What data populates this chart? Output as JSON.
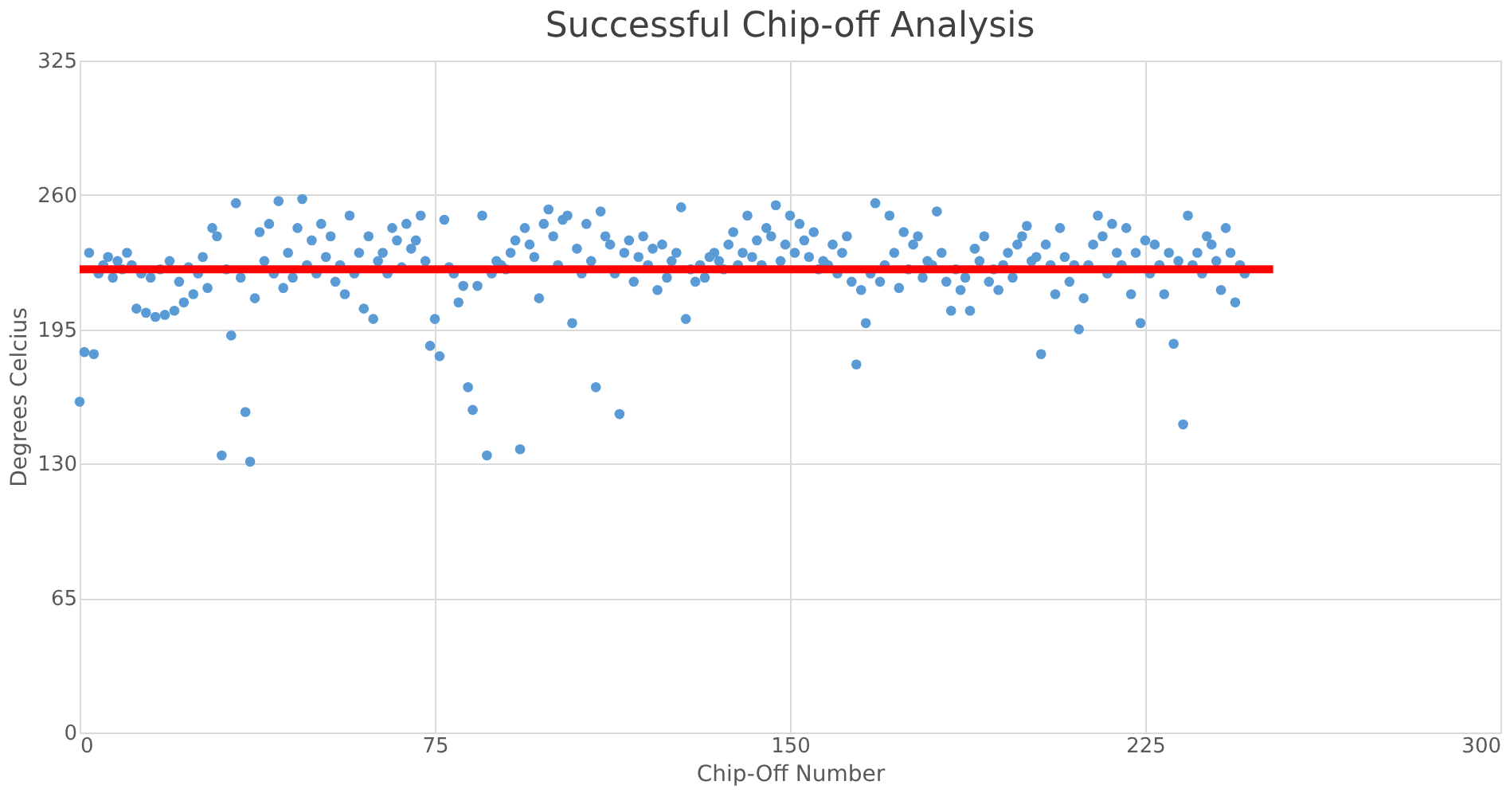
{
  "chart_data": {
    "type": "scatter",
    "title": "Successful Chip-off Analysis",
    "xlabel": "Chip-Off Number",
    "ylabel": "Degrees Celcius",
    "xlim": [
      0,
      300
    ],
    "xticks": [
      0,
      75,
      150,
      225,
      300
    ],
    "ylim": [
      0,
      325
    ],
    "yticks": [
      0,
      65,
      130,
      195,
      260,
      325
    ],
    "grid": true,
    "legend": false,
    "marker": "circle",
    "series": [
      {
        "color": "#5b9bd5",
        "x": [
          0,
          1,
          2,
          3,
          4,
          5,
          6,
          7,
          8,
          9,
          10,
          11,
          12,
          13,
          14,
          15,
          16,
          17,
          18,
          19,
          20,
          21,
          22,
          23,
          24,
          25,
          26,
          27,
          28,
          29,
          30,
          31,
          32,
          33,
          34,
          35,
          36,
          37,
          38,
          39,
          40,
          41,
          42,
          43,
          44,
          45,
          46,
          47,
          48,
          49,
          50,
          51,
          52,
          53,
          54,
          55,
          56,
          57,
          58,
          59,
          60,
          61,
          62,
          63,
          64,
          65,
          66,
          67,
          68,
          69,
          70,
          71,
          72,
          73,
          74,
          75,
          76,
          77,
          78,
          79,
          80,
          81,
          82,
          83,
          84,
          85,
          86,
          87,
          88,
          89,
          90,
          91,
          92,
          93,
          94,
          95,
          96,
          97,
          98,
          99,
          100,
          101,
          102,
          103,
          104,
          105,
          106,
          107,
          108,
          109,
          110,
          111,
          112,
          113,
          114,
          115,
          116,
          117,
          118,
          119,
          120,
          121,
          122,
          123,
          124,
          125,
          126,
          127,
          128,
          129,
          130,
          131,
          132,
          133,
          134,
          135,
          136,
          137,
          138,
          139,
          140,
          141,
          142,
          143,
          144,
          145,
          146,
          147,
          148,
          149,
          150,
          151,
          152,
          153,
          154,
          155,
          156,
          157,
          158,
          159,
          160,
          161,
          162,
          163,
          164,
          165,
          166,
          167,
          168,
          169,
          170,
          171,
          172,
          173,
          174,
          175,
          176,
          177,
          178,
          179,
          180,
          181,
          182,
          183,
          184,
          185,
          186,
          187,
          188,
          189,
          190,
          191,
          192,
          193,
          194,
          195,
          196,
          197,
          198,
          199,
          200,
          201,
          202,
          203,
          204,
          205,
          206,
          207,
          208,
          209,
          210,
          211,
          212,
          213,
          214,
          215,
          216,
          217,
          218,
          219,
          220,
          221,
          222,
          223,
          224,
          225,
          226,
          227,
          228,
          229,
          230,
          231,
          232,
          233,
          234,
          235,
          236,
          237,
          238,
          239,
          240,
          241,
          242,
          243,
          244,
          245,
          246
        ],
        "values": [
          160,
          184,
          232,
          183,
          222,
          226,
          230,
          220,
          228,
          224,
          232,
          226,
          205,
          222,
          203,
          220,
          201,
          224,
          202,
          228,
          204,
          218,
          208,
          225,
          212,
          222,
          230,
          215,
          244,
          240,
          134,
          224,
          192,
          256,
          220,
          155,
          131,
          210,
          242,
          228,
          246,
          222,
          257,
          215,
          232,
          220,
          244,
          258,
          226,
          238,
          222,
          246,
          230,
          240,
          218,
          226,
          212,
          250,
          222,
          232,
          205,
          240,
          200,
          228,
          232,
          222,
          244,
          238,
          225,
          246,
          234,
          238,
          250,
          228,
          187,
          200,
          182,
          248,
          225,
          222,
          208,
          216,
          167,
          156,
          216,
          250,
          134,
          222,
          228,
          226,
          224,
          232,
          238,
          137,
          244,
          236,
          230,
          210,
          246,
          253,
          240,
          226,
          248,
          250,
          198,
          234,
          222,
          246,
          228,
          167,
          252,
          240,
          236,
          222,
          154,
          232,
          238,
          218,
          230,
          240,
          226,
          234,
          214,
          236,
          220,
          228,
          232,
          254,
          200,
          224,
          218,
          226,
          220,
          230,
          232,
          228,
          224,
          236,
          242,
          226,
          232,
          250,
          230,
          238,
          226,
          244,
          240,
          255,
          228,
          236,
          250,
          232,
          246,
          238,
          230,
          242,
          224,
          228,
          226,
          236,
          222,
          232,
          240,
          218,
          178,
          214,
          198,
          222,
          256,
          218,
          226,
          250,
          232,
          215,
          242,
          224,
          236,
          240,
          220,
          228,
          226,
          252,
          232,
          218,
          204,
          224,
          214,
          220,
          204,
          234,
          228,
          240,
          218,
          224,
          214,
          226,
          232,
          220,
          236,
          240,
          245,
          228,
          230,
          183,
          236,
          226,
          212,
          244,
          230,
          218,
          226,
          195,
          210,
          226,
          236,
          250,
          240,
          222,
          246,
          232,
          226,
          244,
          212,
          232,
          198,
          238,
          222,
          236,
          226,
          212,
          232,
          188,
          228,
          149,
          250,
          226,
          232,
          222,
          240,
          236,
          228,
          214,
          244,
          232,
          208,
          226,
          222
        ]
      },
      {
        "type": "line",
        "color": "#ff0000",
        "marker": "none",
        "x": [
          0,
          252
        ],
        "values": [
          224,
          224
        ]
      }
    ]
  }
}
